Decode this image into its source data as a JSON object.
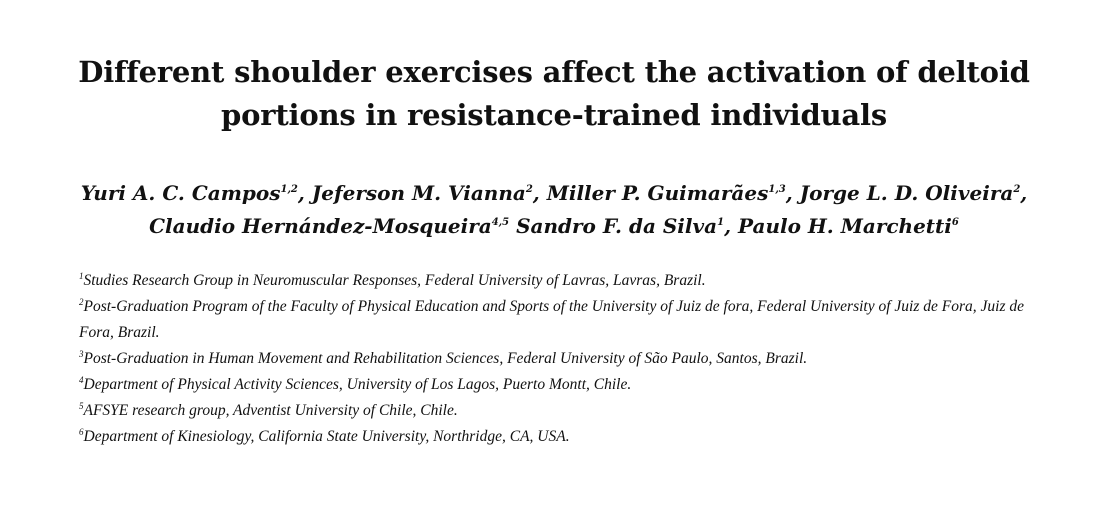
{
  "paper": {
    "title_line1": "Different shoulder exercises affect the activation of deltoid",
    "title_line2": "portions in resistance-trained individuals",
    "authors_line1": [
      {
        "name": "Yuri A. C. Campos",
        "sup": "1,2",
        "sep": ", "
      },
      {
        "name": "Jeferson M. Vianna",
        "sup": "2",
        "sep": ", "
      },
      {
        "name": "Miller P. Guimarães",
        "sup": "1,3",
        "sep": ", "
      },
      {
        "name": "Jorge L. D. Oliveira",
        "sup": "2",
        "sep": ","
      }
    ],
    "authors_line2": [
      {
        "name": "Claudio Hernández-Mosqueira",
        "sup": "4,5",
        "sep": " "
      },
      {
        "name": "Sandro F. da Silva",
        "sup": "1",
        "sep": ", "
      },
      {
        "name": "Paulo H. Marchetti",
        "sup": "6",
        "sep": ""
      }
    ],
    "affiliations": [
      {
        "num": "1",
        "text": "Studies Research Group in Neuromuscular Responses, Federal University of Lavras, Lavras, Brazil."
      },
      {
        "num": "2",
        "text": "Post-Graduation Program of the Faculty of Physical Education and Sports of the University of Juiz de fora, Federal University of Juiz de Fora, Juiz de Fora, Brazil."
      },
      {
        "num": "3",
        "text": "Post-Graduation in Human Movement and Rehabilitation Sciences, Federal University of São Paulo, Santos, Brazil."
      },
      {
        "num": "4",
        "text": "Department of Physical Activity Sciences, University of Los Lagos, Puerto Montt, Chile."
      },
      {
        "num": "5",
        "text": "AFSYE research group, Adventist University of Chile, Chile."
      },
      {
        "num": "6",
        "text": "Department of Kinesiology, California State University, Northridge, CA, USA."
      }
    ]
  }
}
